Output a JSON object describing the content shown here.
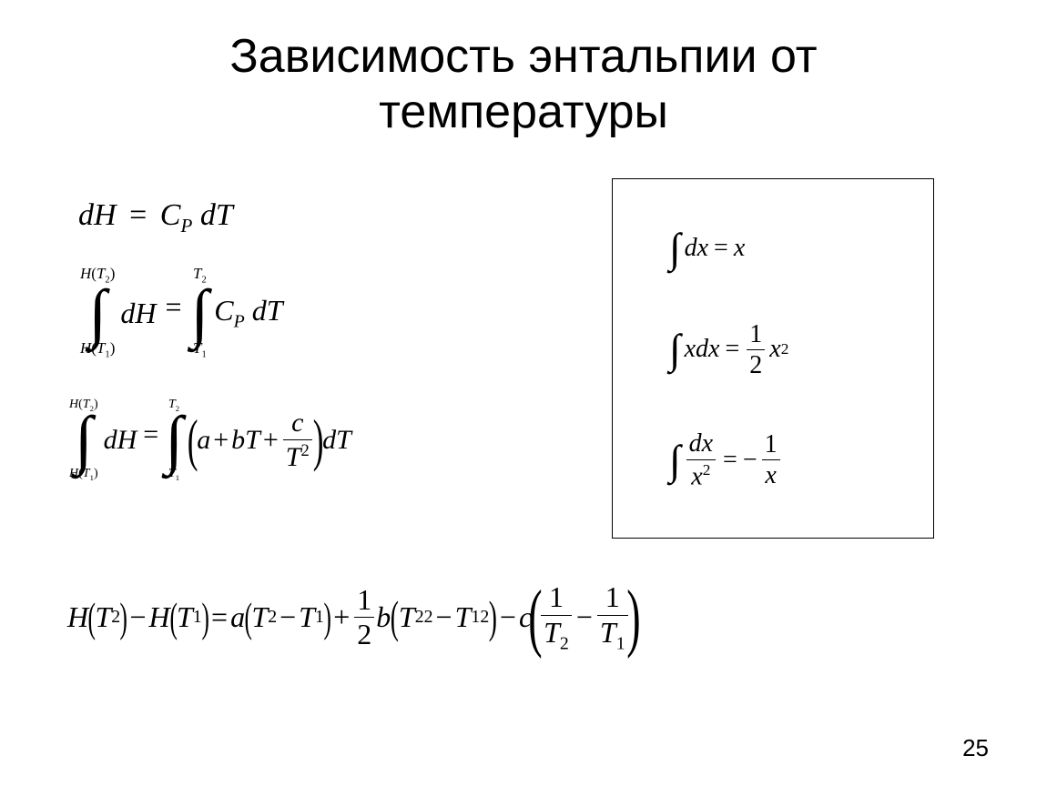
{
  "title_line1": "Зависимость энтальпии от",
  "title_line2": "температуры",
  "page_number": "25",
  "eq1": {
    "lhs_dH": "dH",
    "eq": "=",
    "C": "C",
    "Psub": "P",
    "dT": "dT"
  },
  "eq2": {
    "upper1": "H",
    "upper1_arg_T": "T",
    "upper1_arg_n": "2",
    "lower1": "H",
    "lower1_arg_T": "T",
    "lower1_arg_n": "1",
    "dH": "dH",
    "eq": "=",
    "upper2_T": "T",
    "upper2_n": "2",
    "lower2_T": "T",
    "lower2_n": "1",
    "C": "C",
    "Psub": "P",
    "dT": "dT"
  },
  "eq3": {
    "upper1": "H",
    "upper1_arg_T": "T",
    "upper1_arg_n": "2",
    "lower1": "H",
    "lower1_arg_T": "T",
    "lower1_arg_n": "1",
    "dH": "dH",
    "eq": "=",
    "upper2_T": "T",
    "upper2_n": "2",
    "lower2_T": "T",
    "lower2_n": "1",
    "a": "a",
    "plus1": "+",
    "b": "b",
    "T": "T",
    "plus2": "+",
    "c": "c",
    "Tsq_T": "T",
    "Tsq_exp": "2",
    "dT": "dT"
  },
  "eq4": {
    "H": "H",
    "T": "T",
    "two": "2",
    "one": "1",
    "minus": "−",
    "eq": "=",
    "a": "a",
    "plus": "+",
    "half_num": "1",
    "half_den": "2",
    "b": "b",
    "c": "c"
  },
  "ref": {
    "r1_dx": "dx",
    "r1_eq": "=",
    "r1_x": "x",
    "r2_xdx": "xdx",
    "r2_eq": "=",
    "r2_num": "1",
    "r2_den": "2",
    "r2_x": "x",
    "r2_exp": "2",
    "r3_top": "dx",
    "r3_bot_x": "x",
    "r3_bot_exp": "2",
    "r3_eq": "=",
    "r3_minus": "−",
    "r3_r_num": "1",
    "r3_r_den": "x"
  },
  "colors": {
    "text": "#000000",
    "background": "#ffffff",
    "border": "#000000"
  }
}
